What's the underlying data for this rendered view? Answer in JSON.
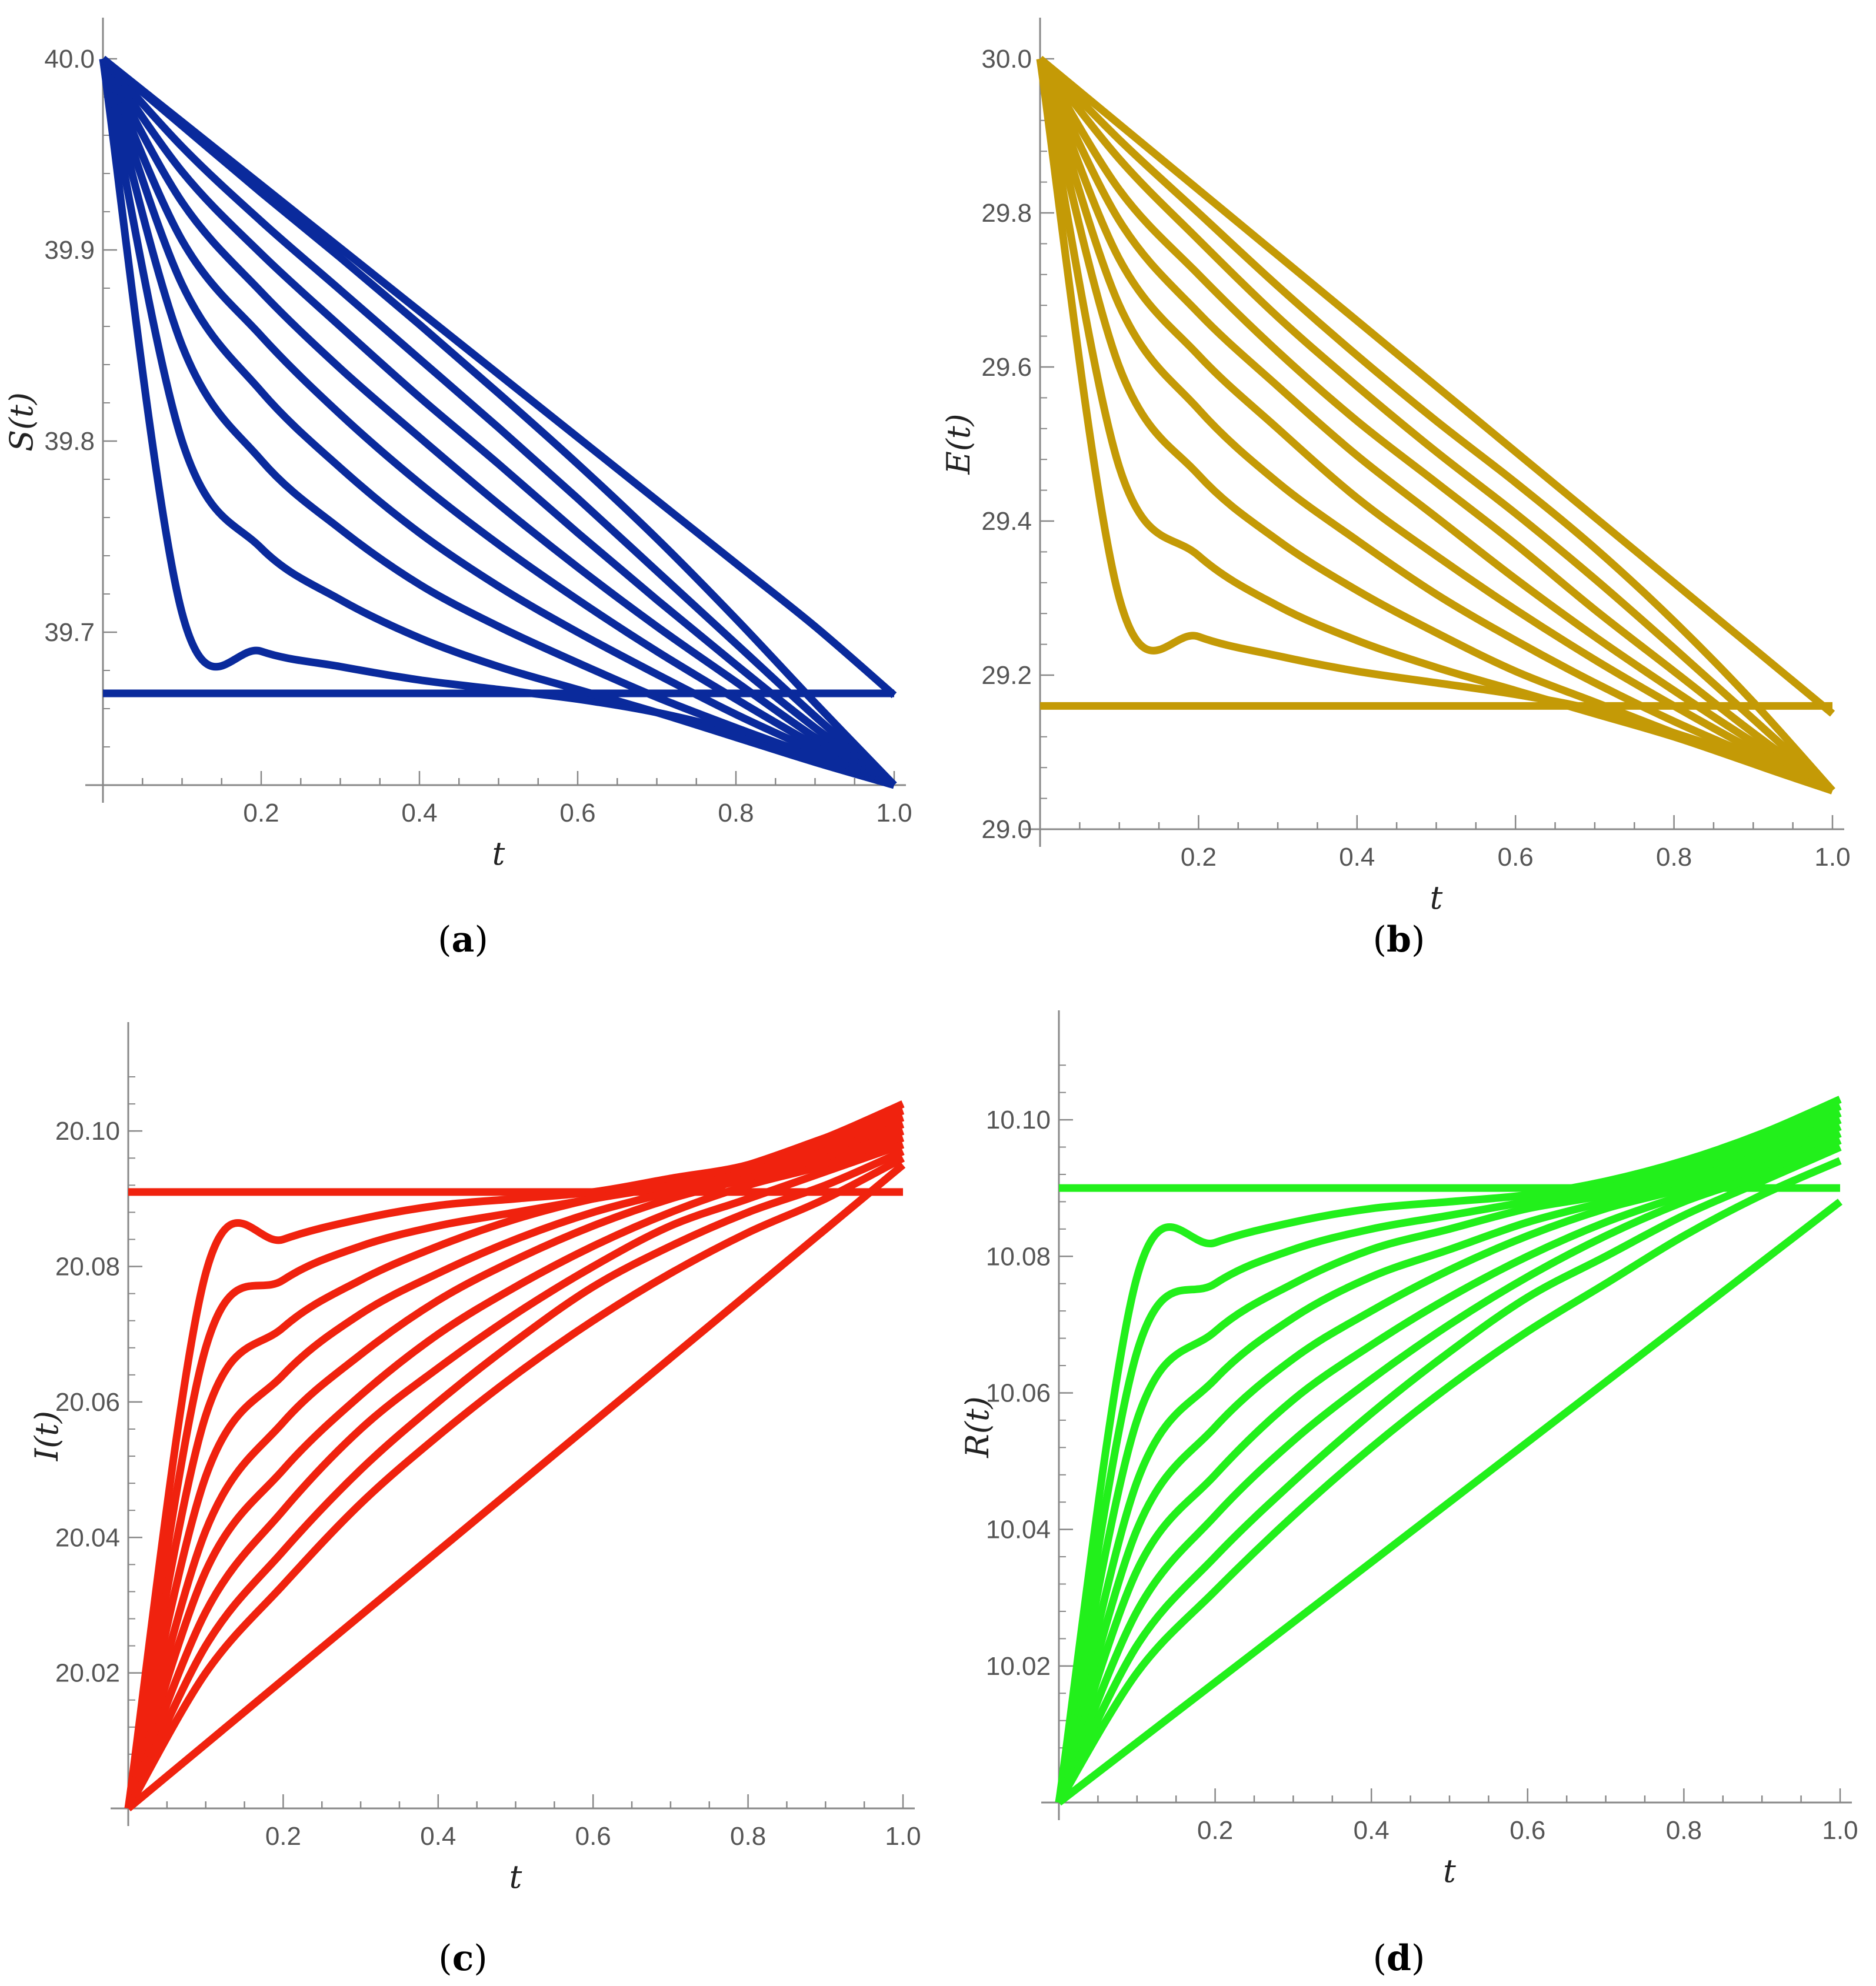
{
  "chart_data": [
    {
      "type": "line",
      "panel_label": "a",
      "ylabel": "S(t)",
      "xlabel": "t",
      "xlim": [
        0,
        1.0
      ],
      "ylim": [
        39.62,
        40.0
      ],
      "x_ticks": [
        "0.2",
        "0.4",
        "0.6",
        "0.8",
        "1.0"
      ],
      "y_ticks": [
        "39.7",
        "39.8",
        "39.9",
        "40.0"
      ],
      "y_tick_values": [
        39.7,
        39.8,
        39.9,
        40.0
      ],
      "x": [
        0.0,
        0.1,
        0.2,
        0.3,
        0.4,
        0.5,
        0.6,
        0.7,
        0.8,
        0.9,
        1.0
      ],
      "series": [
        {
          "values": [
            39.668,
            39.668,
            39.668,
            39.668,
            39.668,
            39.668,
            39.668,
            39.668,
            39.668,
            39.668,
            39.668
          ]
        },
        {
          "values": [
            40.0,
            39.71,
            39.69,
            39.682,
            39.675,
            39.67,
            39.665,
            39.658,
            39.648,
            39.635,
            39.62
          ]
        },
        {
          "values": [
            40.0,
            39.8,
            39.744,
            39.717,
            39.697,
            39.682,
            39.67,
            39.658,
            39.645,
            39.632,
            39.62
          ]
        },
        {
          "values": [
            40.0,
            39.85,
            39.79,
            39.754,
            39.725,
            39.703,
            39.684,
            39.666,
            39.65,
            39.635,
            39.62
          ]
        },
        {
          "values": [
            40.0,
            39.882,
            39.826,
            39.786,
            39.752,
            39.724,
            39.7,
            39.678,
            39.657,
            39.638,
            39.62
          ]
        },
        {
          "values": [
            40.0,
            39.905,
            39.855,
            39.814,
            39.778,
            39.746,
            39.717,
            39.69,
            39.665,
            39.641,
            39.62
          ]
        },
        {
          "values": [
            40.0,
            39.925,
            39.878,
            39.838,
            39.802,
            39.767,
            39.734,
            39.703,
            39.674,
            39.645,
            39.62
          ]
        },
        {
          "values": [
            40.0,
            39.941,
            39.898,
            39.86,
            39.823,
            39.788,
            39.752,
            39.717,
            39.683,
            39.65,
            39.62
          ]
        },
        {
          "values": [
            40.0,
            39.954,
            39.915,
            39.879,
            39.843,
            39.807,
            39.77,
            39.732,
            39.694,
            39.656,
            39.62
          ]
        },
        {
          "values": [
            40.0,
            39.965,
            39.93,
            39.896,
            39.861,
            39.825,
            39.788,
            39.749,
            39.707,
            39.663,
            39.62
          ]
        },
        {
          "values": [
            40.0,
            39.967,
            39.934,
            39.901,
            39.868,
            39.835,
            39.802,
            39.769,
            39.736,
            39.703,
            39.667
          ]
        }
      ],
      "color": "#0a2a9c"
    },
    {
      "type": "line",
      "panel_label": "b",
      "ylabel": "E(t)",
      "xlabel": "t",
      "xlim": [
        0,
        1.0
      ],
      "ylim": [
        29.0,
        30.0
      ],
      "x_ticks": [
        "0.2",
        "0.4",
        "0.6",
        "0.8",
        "1.0"
      ],
      "y_ticks": [
        "29.0",
        "29.2",
        "29.4",
        "29.6",
        "29.8",
        "30.0"
      ],
      "y_tick_values": [
        29.0,
        29.2,
        29.4,
        29.6,
        29.8,
        30.0
      ],
      "x": [
        0.0,
        0.1,
        0.2,
        0.3,
        0.4,
        0.5,
        0.6,
        0.7,
        0.8,
        0.9,
        1.0
      ],
      "series": [
        {
          "values": [
            29.16,
            29.16,
            29.16,
            29.16,
            29.16,
            29.16,
            29.16,
            29.16,
            29.16,
            29.16,
            29.16
          ]
        },
        {
          "values": [
            30.0,
            29.3,
            29.25,
            29.225,
            29.205,
            29.19,
            29.175,
            29.155,
            29.125,
            29.09,
            29.05
          ]
        },
        {
          "values": [
            30.0,
            29.47,
            29.355,
            29.29,
            29.245,
            29.21,
            29.18,
            29.15,
            29.12,
            29.085,
            29.05
          ]
        },
        {
          "values": [
            30.0,
            29.6,
            29.46,
            29.375,
            29.31,
            29.255,
            29.205,
            29.165,
            29.125,
            29.085,
            29.05
          ]
        },
        {
          "values": [
            30.0,
            29.68,
            29.545,
            29.45,
            29.375,
            29.305,
            29.245,
            29.19,
            29.14,
            29.095,
            29.05
          ]
        },
        {
          "values": [
            30.0,
            29.74,
            29.615,
            29.52,
            29.43,
            29.355,
            29.285,
            29.22,
            29.16,
            29.103,
            29.05
          ]
        },
        {
          "values": [
            30.0,
            29.79,
            29.67,
            29.575,
            29.485,
            29.405,
            29.325,
            29.25,
            29.18,
            29.113,
            29.05
          ]
        },
        {
          "values": [
            30.0,
            29.83,
            29.72,
            29.62,
            29.53,
            29.45,
            29.37,
            29.285,
            29.205,
            29.125,
            29.05
          ]
        },
        {
          "values": [
            30.0,
            29.87,
            29.765,
            29.665,
            29.575,
            29.49,
            29.41,
            29.325,
            29.235,
            29.143,
            29.05
          ]
        },
        {
          "values": [
            30.0,
            29.895,
            29.8,
            29.705,
            29.615,
            29.53,
            29.45,
            29.365,
            29.27,
            29.165,
            29.05
          ]
        },
        {
          "values": [
            30.0,
            29.915,
            29.83,
            29.745,
            29.66,
            29.575,
            29.49,
            29.405,
            29.32,
            29.235,
            29.15
          ]
        }
      ],
      "color": "#c49a06"
    },
    {
      "type": "line",
      "panel_label": "c",
      "ylabel": "I(t)",
      "xlabel": "t",
      "xlim": [
        0,
        1.0
      ],
      "ylim": [
        20.0,
        20.11
      ],
      "x_ticks": [
        "0.2",
        "0.4",
        "0.6",
        "0.8",
        "1.0"
      ],
      "y_ticks": [
        "20.02",
        "20.04",
        "20.06",
        "20.08",
        "20.10"
      ],
      "y_tick_values": [
        20.02,
        20.04,
        20.06,
        20.08,
        20.1
      ],
      "x": [
        0.0,
        0.1,
        0.2,
        0.3,
        0.4,
        0.5,
        0.6,
        0.7,
        0.8,
        0.9,
        1.0
      ],
      "series": [
        {
          "values": [
            20.091,
            20.091,
            20.091,
            20.091,
            20.091,
            20.091,
            20.091,
            20.091,
            20.091,
            20.091,
            20.091
          ]
        },
        {
          "values": [
            20.0,
            20.079,
            20.084,
            20.087,
            20.089,
            20.09,
            20.091,
            20.093,
            20.095,
            20.099,
            20.104
          ]
        },
        {
          "values": [
            20.0,
            20.068,
            20.078,
            20.083,
            20.086,
            20.088,
            20.09,
            20.092,
            20.095,
            20.099,
            20.103
          ]
        },
        {
          "values": [
            20.0,
            20.058,
            20.071,
            20.078,
            20.083,
            20.087,
            20.09,
            20.092,
            20.095,
            20.098,
            20.102
          ]
        },
        {
          "values": [
            20.0,
            20.049,
            20.064,
            20.073,
            20.079,
            20.084,
            20.088,
            20.091,
            20.094,
            20.097,
            20.101
          ]
        },
        {
          "values": [
            20.0,
            20.041,
            20.057,
            20.067,
            20.075,
            20.081,
            20.086,
            20.09,
            20.093,
            20.096,
            20.1
          ]
        },
        {
          "values": [
            20.0,
            20.035,
            20.05,
            20.061,
            20.07,
            20.077,
            20.083,
            20.088,
            20.092,
            20.095,
            20.099
          ]
        },
        {
          "values": [
            20.0,
            20.029,
            20.044,
            20.056,
            20.065,
            20.073,
            20.08,
            20.086,
            20.09,
            20.094,
            20.098
          ]
        },
        {
          "values": [
            20.0,
            20.024,
            20.038,
            20.05,
            20.06,
            20.069,
            20.077,
            20.083,
            20.088,
            20.092,
            20.097
          ]
        },
        {
          "values": [
            20.0,
            20.02,
            20.033,
            20.045,
            20.055,
            20.064,
            20.072,
            20.079,
            20.085,
            20.09,
            20.096
          ]
        },
        {
          "values": [
            20.0,
            20.0095,
            20.019,
            20.0285,
            20.038,
            20.0475,
            20.057,
            20.0665,
            20.076,
            20.0855,
            20.095
          ]
        }
      ],
      "color": "#f0220e"
    },
    {
      "type": "line",
      "panel_label": "d",
      "ylabel": "R(t)",
      "xlabel": "t",
      "xlim": [
        0,
        1.0
      ],
      "ylim": [
        10.0,
        10.11
      ],
      "x_ticks": [
        "0.2",
        "0.4",
        "0.6",
        "0.8",
        "1.0"
      ],
      "y_ticks": [
        "10.02",
        "10.04",
        "10.06",
        "10.08",
        "10.10"
      ],
      "y_tick_values": [
        10.02,
        10.04,
        10.06,
        10.08,
        10.1
      ],
      "x": [
        0.0,
        0.1,
        0.2,
        0.3,
        0.4,
        0.5,
        0.6,
        0.7,
        0.8,
        0.9,
        1.0
      ],
      "series": [
        {
          "values": [
            10.09,
            10.09,
            10.09,
            10.09,
            10.09,
            10.09,
            10.09,
            10.09,
            10.09,
            10.09,
            10.09
          ]
        },
        {
          "values": [
            10.0,
            10.077,
            10.082,
            10.085,
            10.087,
            10.088,
            10.089,
            10.091,
            10.094,
            10.098,
            10.103
          ]
        },
        {
          "values": [
            10.0,
            10.066,
            10.076,
            10.081,
            10.084,
            10.086,
            10.088,
            10.09,
            10.093,
            10.097,
            10.102
          ]
        },
        {
          "values": [
            10.0,
            10.056,
            10.069,
            10.076,
            10.081,
            10.084,
            10.087,
            10.089,
            10.092,
            10.096,
            10.101
          ]
        },
        {
          "values": [
            10.0,
            10.047,
            10.062,
            10.071,
            10.077,
            10.081,
            10.085,
            10.088,
            10.091,
            10.095,
            10.1
          ]
        },
        {
          "values": [
            10.0,
            10.04,
            10.055,
            10.065,
            10.072,
            10.078,
            10.083,
            10.087,
            10.09,
            10.094,
            10.099
          ]
        },
        {
          "values": [
            10.0,
            10.034,
            10.048,
            10.059,
            10.067,
            10.074,
            10.08,
            10.085,
            10.089,
            10.093,
            10.098
          ]
        },
        {
          "values": [
            10.0,
            10.028,
            10.042,
            10.053,
            10.062,
            10.07,
            10.077,
            10.083,
            10.088,
            10.092,
            10.097
          ]
        },
        {
          "values": [
            10.0,
            10.023,
            10.036,
            10.047,
            10.057,
            10.066,
            10.074,
            10.08,
            10.086,
            10.091,
            10.096
          ]
        },
        {
          "values": [
            10.0,
            10.019,
            10.031,
            10.042,
            10.052,
            10.061,
            10.069,
            10.076,
            10.083,
            10.089,
            10.094
          ]
        },
        {
          "values": [
            10.0,
            10.0088,
            10.0176,
            10.0264,
            10.0352,
            10.044,
            10.0528,
            10.0616,
            10.0704,
            10.0792,
            10.088
          ]
        }
      ],
      "color": "#22f01b"
    }
  ],
  "captions": {
    "a": "a",
    "b": "b",
    "c": "c",
    "d": "d"
  }
}
